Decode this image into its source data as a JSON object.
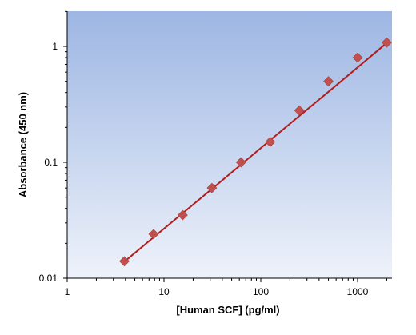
{
  "chart_data": {
    "type": "scatter",
    "title": "",
    "xlabel": "[Human SCF] (pg/ml)",
    "ylabel": "Absorbance (450 nm)",
    "x_scale": "log",
    "y_scale": "log",
    "xlim": [
      1,
      2000
    ],
    "ylim": [
      0.01,
      2
    ],
    "x_ticks": [
      1,
      10,
      100,
      1000
    ],
    "x_tick_labels": [
      "1",
      "10",
      "100",
      "1000"
    ],
    "y_ticks": [
      0.01,
      0.1,
      1
    ],
    "y_tick_labels": [
      "0.01",
      "0.1",
      "1"
    ],
    "grid": false,
    "legend": "none",
    "series": [
      {
        "kind": "points",
        "marker": "diamond",
        "x": [
          3.9,
          7.8,
          15.6,
          31.25,
          62.5,
          125,
          250,
          500,
          1000,
          2000
        ],
        "y": [
          0.014,
          0.024,
          0.035,
          0.06,
          0.1,
          0.15,
          0.28,
          0.5,
          0.8,
          1.08
        ]
      },
      {
        "kind": "fit-line",
        "x": [
          3.9,
          7.8,
          15.6,
          31.25,
          62.5,
          125,
          250,
          500,
          1000,
          2000
        ],
        "y": [
          0.0139,
          0.0225,
          0.0364,
          0.0589,
          0.0955,
          0.155,
          0.251,
          0.406,
          0.659,
          1.07
        ]
      }
    ]
  },
  "colors": {
    "plot_bg_top": "#9db6e3",
    "plot_bg_bottom": "#eef2fa",
    "marker": "#c0504d",
    "fit_line": "#b01e1e",
    "axis": "#000000"
  }
}
